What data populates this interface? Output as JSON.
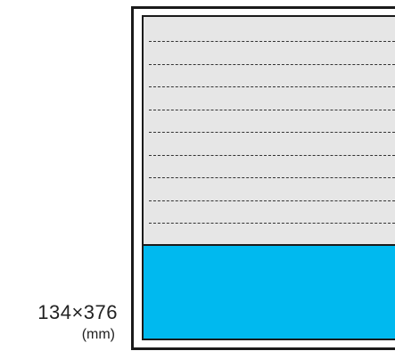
{
  "dimensions": {
    "size_label": "134×376",
    "unit_label": "(mm)"
  },
  "panel": {
    "lined_rows": 10,
    "background_color": "#e6e6e6",
    "rule_color": "#333333",
    "blue_color": "#00b9ef",
    "frame_color": "#1a1a1a"
  }
}
